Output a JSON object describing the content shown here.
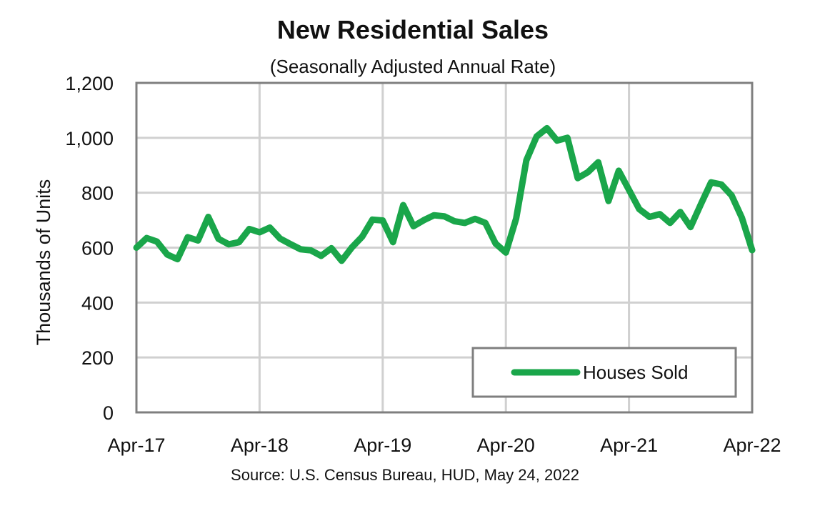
{
  "chart_data": {
    "type": "line",
    "title": "New Residential Sales",
    "subtitle": "(Seasonally Adjusted Annual Rate)",
    "xlabel": "",
    "ylabel": "Thousands of Units",
    "source": "Source:  U.S. Census Bureau, HUD, May 24, 2022",
    "ylim": [
      0,
      1200
    ],
    "yticks": [
      0,
      200,
      400,
      600,
      800,
      1000,
      1200
    ],
    "ytick_labels": [
      "0",
      "200",
      "400",
      "600",
      "800",
      "1,000",
      "1,200"
    ],
    "xlim": [
      "2017-04",
      "2022-04"
    ],
    "xticks": [
      "2017-04",
      "2018-04",
      "2019-04",
      "2020-04",
      "2021-04",
      "2022-04"
    ],
    "xtick_labels": [
      "Apr-17",
      "Apr-18",
      "Apr-19",
      "Apr-20",
      "Apr-21",
      "Apr-22"
    ],
    "grid": true,
    "legend_position": "bottom-right",
    "series": [
      {
        "name": "Houses Sold",
        "color": "#1AA64A",
        "x": [
          "2017-04",
          "2017-05",
          "2017-06",
          "2017-07",
          "2017-08",
          "2017-09",
          "2017-10",
          "2017-11",
          "2017-12",
          "2018-01",
          "2018-02",
          "2018-03",
          "2018-04",
          "2018-05",
          "2018-06",
          "2018-07",
          "2018-08",
          "2018-09",
          "2018-10",
          "2018-11",
          "2018-12",
          "2019-01",
          "2019-02",
          "2019-03",
          "2019-04",
          "2019-05",
          "2019-06",
          "2019-07",
          "2019-08",
          "2019-09",
          "2019-10",
          "2019-11",
          "2019-12",
          "2020-01",
          "2020-02",
          "2020-03",
          "2020-04",
          "2020-05",
          "2020-06",
          "2020-07",
          "2020-08",
          "2020-09",
          "2020-10",
          "2020-11",
          "2020-12",
          "2021-01",
          "2021-02",
          "2021-03",
          "2021-04",
          "2021-05",
          "2021-06",
          "2021-07",
          "2021-08",
          "2021-09",
          "2021-10",
          "2021-11",
          "2021-12",
          "2022-01",
          "2022-02",
          "2022-03",
          "2022-04"
        ],
        "values": [
          600,
          635,
          622,
          575,
          558,
          638,
          626,
          712,
          632,
          612,
          620,
          668,
          656,
          673,
          633,
          613,
          594,
          590,
          570,
          598,
          552,
          601,
          640,
          702,
          699,
          620,
          755,
          678,
          700,
          718,
          714,
          696,
          690,
          705,
          690,
          615,
          582,
          706,
          918,
          1005,
          1035,
          990,
          1000,
          853,
          875,
          911,
          770,
          880,
          810,
          740,
          712,
          722,
          690,
          730,
          675,
          758,
          838,
          830,
          790,
          709,
          591
        ]
      }
    ]
  }
}
